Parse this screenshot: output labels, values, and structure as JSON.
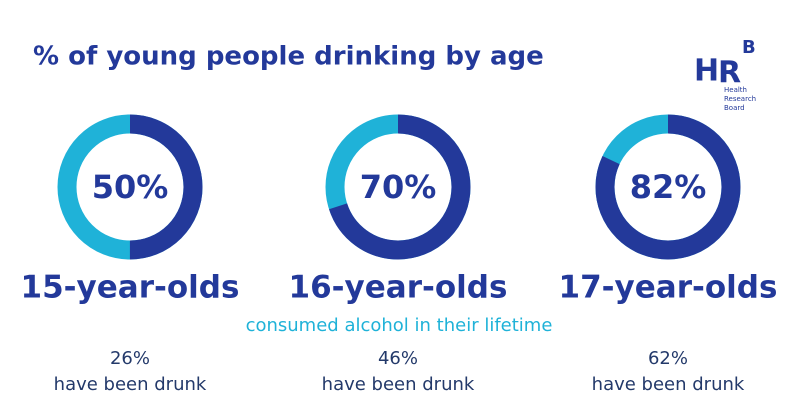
{
  "title": "% of young people drinking by age",
  "subtitle": "consumed alcohol in their lifetime",
  "logo": {
    "mark": [
      "H",
      "R",
      "B"
    ],
    "name": [
      "Health",
      "Research",
      "Board"
    ]
  },
  "chart_data": [
    {
      "type": "donut",
      "title": "15-year-olds",
      "values": [
        50
      ],
      "value_labels": [
        "50%"
      ],
      "color": "#23399a",
      "track_color": "#1fb2d8",
      "drunk": 26,
      "drunk_label": "26%",
      "drunk_text": "have been drunk"
    },
    {
      "type": "donut",
      "title": "16-year-olds",
      "values": [
        70
      ],
      "value_labels": [
        "70%"
      ],
      "color": "#23399a",
      "track_color": "#1fb2d8",
      "drunk": 46,
      "drunk_label": "46%",
      "drunk_text": "have been drunk"
    },
    {
      "type": "donut",
      "title": "17-year-olds",
      "values": [
        82
      ],
      "value_labels": [
        "82%"
      ],
      "color": "#23399a",
      "track_color": "#1fb2d8",
      "drunk": 62,
      "drunk_label": "62%",
      "drunk_text": "have been drunk"
    }
  ]
}
